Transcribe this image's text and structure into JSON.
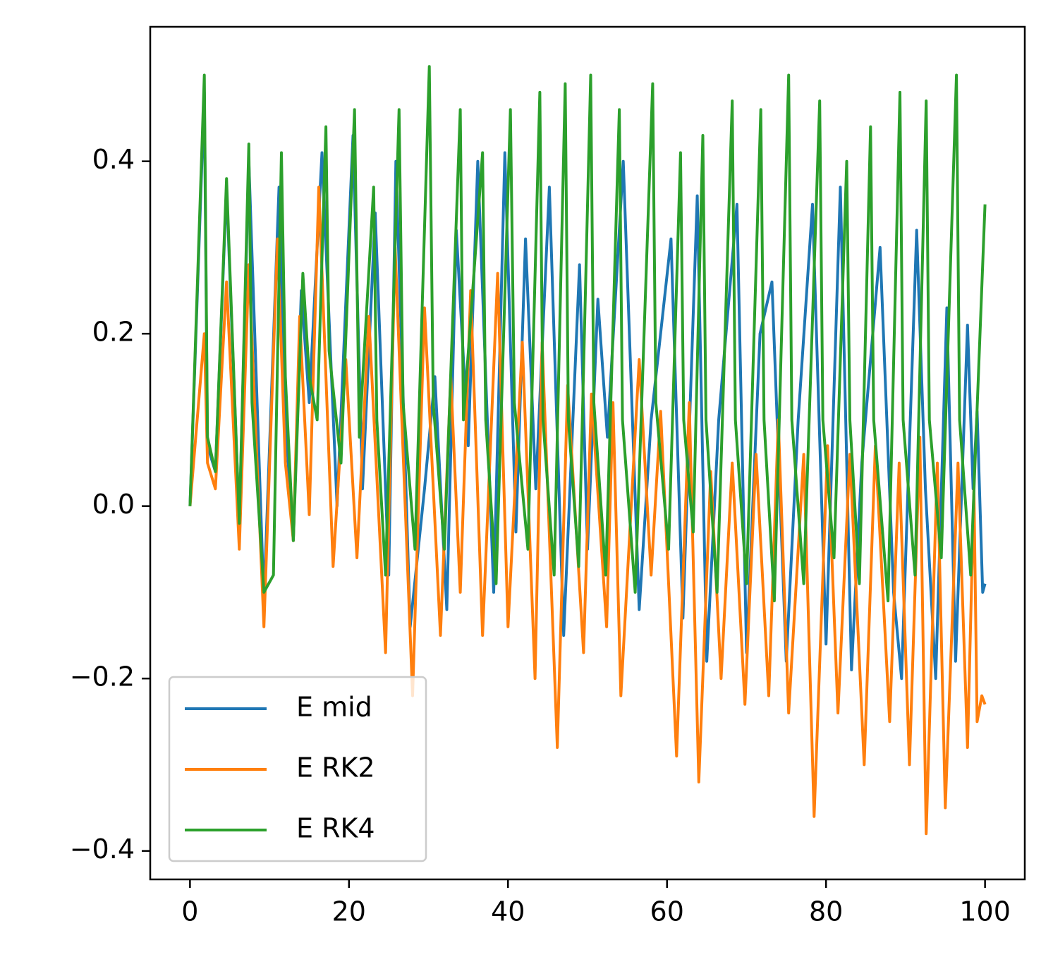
{
  "chart_data": {
    "type": "line",
    "xlim": [
      -5,
      105
    ],
    "xticks": [
      0,
      20,
      40,
      60,
      80,
      100
    ],
    "ylim": [
      -0.433,
      0.556
    ],
    "yticks": [
      {
        "value": -0.4,
        "label": "−0.4"
      },
      {
        "value": -0.2,
        "label": "−0.2"
      },
      {
        "value": 0,
        "label": "0.0"
      },
      0.2,
      0.4
    ],
    "legend": "lower left",
    "grid": false,
    "series": [
      {
        "name": "E mid",
        "color": "#1f77b4",
        "x": [
          0,
          1.8,
          2.2,
          3.2,
          4.6,
          6.2,
          7.4,
          9.3,
          11.2,
          12,
          13,
          14,
          15,
          16.6,
          18.5,
          20.5,
          21.7,
          23.3,
          25,
          25.9,
          27.7,
          29.5,
          30.8,
          32.3,
          33.5,
          35,
          36.2,
          38.2,
          39.6,
          41,
          42.2,
          43.5,
          45.2,
          47,
          49,
          50,
          51.3,
          52.5,
          54.5,
          56.5,
          58,
          60.5,
          62,
          63.8,
          65,
          66.5,
          68.8,
          70,
          71.7,
          73.2,
          75,
          76.5,
          78.3,
          80,
          81.8,
          83.2,
          84.5,
          86.8,
          88.5,
          89.5,
          91.4,
          92.5,
          93.8,
          95.2,
          96.3,
          97.8,
          98.5,
          99,
          99.7,
          100
        ],
        "values": [
          0,
          0.48,
          0.07,
          0.04,
          0.37,
          -0.02,
          0.4,
          -0.11,
          0.37,
          0.1,
          -0.04,
          0.25,
          0.12,
          0.41,
          0,
          0.43,
          0.02,
          0.34,
          -0.08,
          0.4,
          -0.14,
          0.02,
          0.15,
          -0.12,
          0.32,
          0.07,
          0.4,
          -0.1,
          0.41,
          -0.03,
          0.31,
          0.02,
          0.37,
          -0.15,
          0.28,
          -0.05,
          0.24,
          0.08,
          0.4,
          -0.12,
          0.1,
          0.31,
          -0.13,
          0.36,
          -0.18,
          0.1,
          0.35,
          -0.17,
          0.2,
          0.26,
          -0.18,
          0.1,
          0.35,
          -0.16,
          0.37,
          -0.19,
          0.05,
          0.3,
          -0.1,
          -0.2,
          0.32,
          0.02,
          -0.2,
          0.23,
          -0.18,
          0.21,
          0.02,
          0.11,
          -0.1,
          -0.09
        ]
      },
      {
        "name": "E RK2",
        "color": "#ff7f0e",
        "x": [
          0,
          1.8,
          2.2,
          3.2,
          4.6,
          6.2,
          7.4,
          9.3,
          11,
          12,
          13,
          13.8,
          15,
          16.2,
          18,
          19.6,
          21,
          22.5,
          24.6,
          25.8,
          28,
          29.5,
          31.5,
          32.8,
          34,
          35.3,
          36.8,
          38.7,
          40,
          41.8,
          43.4,
          44.3,
          46.2,
          47.5,
          49.5,
          50.5,
          52.4,
          53.2,
          54.2,
          56.5,
          58,
          59.2,
          61.2,
          62.8,
          64,
          65.5,
          66.8,
          68.2,
          69.8,
          71.2,
          72.8,
          74,
          75.3,
          77.2,
          78.5,
          80.2,
          81.5,
          83,
          84.8,
          86.2,
          88,
          89.2,
          90.5,
          91.8,
          92.6,
          94,
          95,
          96.6,
          97.8,
          98.6,
          99,
          99.6,
          100
        ],
        "values": [
          0,
          0.2,
          0.05,
          0.02,
          0.26,
          -0.05,
          0.28,
          -0.14,
          0.31,
          0.05,
          -0.04,
          0.22,
          -0.01,
          0.37,
          -0.07,
          0.17,
          -0.06,
          0.22,
          -0.17,
          0.3,
          -0.22,
          0.23,
          -0.15,
          0.15,
          -0.1,
          0.25,
          -0.15,
          0.27,
          -0.14,
          0.19,
          -0.2,
          0.19,
          -0.28,
          0.14,
          -0.17,
          0.13,
          -0.14,
          0.12,
          -0.22,
          0.17,
          -0.08,
          0.11,
          -0.29,
          0.12,
          -0.32,
          0.04,
          -0.2,
          0.05,
          -0.23,
          0.06,
          -0.22,
          0.1,
          -0.24,
          0.06,
          -0.36,
          0.07,
          -0.24,
          0.06,
          -0.3,
          0.07,
          -0.25,
          0.05,
          -0.3,
          0.08,
          -0.38,
          0.05,
          -0.35,
          0.05,
          -0.28,
          0.02,
          -0.25,
          -0.22,
          -0.23
        ]
      },
      {
        "name": "E RK4",
        "color": "#2ca02c",
        "x": [
          0,
          1.8,
          2.2,
          3.2,
          4.6,
          6.2,
          7.4,
          7.8,
          9.3,
          10.5,
          11.5,
          12,
          13,
          14.2,
          15,
          16,
          17.1,
          17.5,
          19,
          20.7,
          21.3,
          23.1,
          23.5,
          24.6,
          26.3,
          26.8,
          28.3,
          30.1,
          30.6,
          32,
          34,
          34.4,
          36.8,
          37.2,
          38.5,
          40.3,
          40.8,
          42.5,
          44,
          44.4,
          45.8,
          47.2,
          47.6,
          48.9,
          50.4,
          50.8,
          52.3,
          54,
          54.4,
          56,
          58.2,
          58.6,
          60.2,
          61.7,
          62.1,
          63.3,
          64.5,
          64.9,
          66.3,
          68.2,
          68.6,
          70,
          71.8,
          72.2,
          73.5,
          75.3,
          75.7,
          77.2,
          79.2,
          79.6,
          81,
          82.6,
          83,
          84.2,
          85.6,
          86,
          87.8,
          89.3,
          89.7,
          91.2,
          92.6,
          93,
          94.5,
          96.4,
          96.8,
          98.2,
          100
        ],
        "values": [
          0,
          0.5,
          0.08,
          0.04,
          0.38,
          -0.02,
          0.42,
          0.12,
          -0.1,
          -0.08,
          0.41,
          0.15,
          -0.04,
          0.27,
          0.15,
          0.1,
          0.44,
          0.18,
          0.05,
          0.46,
          0.08,
          0.37,
          0.1,
          -0.08,
          0.46,
          0.12,
          -0.05,
          0.51,
          0.12,
          -0.05,
          0.46,
          0.1,
          0.41,
          0.1,
          -0.09,
          0.46,
          0.12,
          -0.05,
          0.48,
          0.1,
          -0.08,
          0.49,
          0.1,
          -0.07,
          0.5,
          0.12,
          -0.08,
          0.46,
          0.1,
          -0.1,
          0.49,
          0.12,
          -0.05,
          0.41,
          0.1,
          -0.03,
          0.43,
          0.1,
          -0.1,
          0.47,
          0.1,
          -0.09,
          0.46,
          0.1,
          -0.11,
          0.5,
          0.1,
          -0.09,
          0.47,
          0.1,
          -0.06,
          0.4,
          0.1,
          -0.09,
          0.44,
          0.1,
          -0.11,
          0.48,
          0.1,
          -0.08,
          0.47,
          0.1,
          -0.06,
          0.5,
          0.1,
          -0.08,
          0.35
        ]
      }
    ]
  }
}
